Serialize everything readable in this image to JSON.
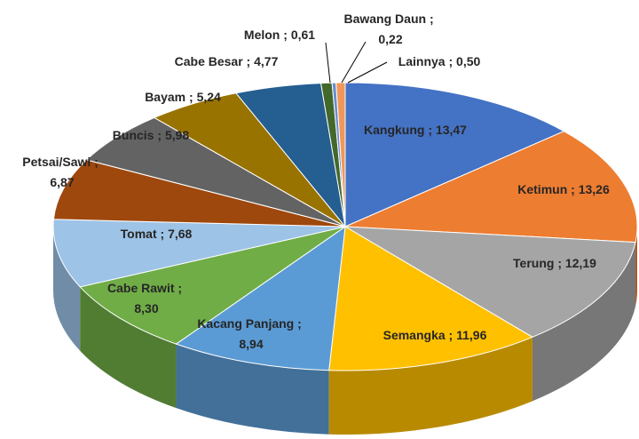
{
  "chart_data": {
    "type": "pie3d",
    "categories": [
      "Kangkung",
      "Ketimun",
      "Terung",
      "Semangka",
      "Kacang Panjang",
      "Cabe Rawit",
      "Tomat",
      "Petsai/Sawi",
      "Buncis",
      "Bayam",
      "Cabe Besar",
      "Melon",
      "Bawang Daun",
      "Lainnya"
    ],
    "values": [
      13.47,
      13.26,
      12.19,
      11.96,
      8.94,
      8.3,
      7.68,
      6.87,
      5.98,
      5.24,
      4.77,
      0.61,
      0.22,
      0.5
    ],
    "value_labels": [
      "13,47",
      "13,26",
      "12,19",
      "11,96",
      "8,94",
      "8,30",
      "7,68",
      "6,87",
      "5,98",
      "5,24",
      "4,77",
      "0,61",
      "0,22",
      "0,50"
    ],
    "label_separator": " ; ",
    "colors": [
      "#4472c4",
      "#ed7d31",
      "#a5a5a5",
      "#ffc000",
      "#5b9bd5",
      "#70ad47",
      "#9dc3e6",
      "#9e480e",
      "#636363",
      "#997300",
      "#255e91",
      "#43682b",
      "#698ed0",
      "#f1975a"
    ]
  }
}
